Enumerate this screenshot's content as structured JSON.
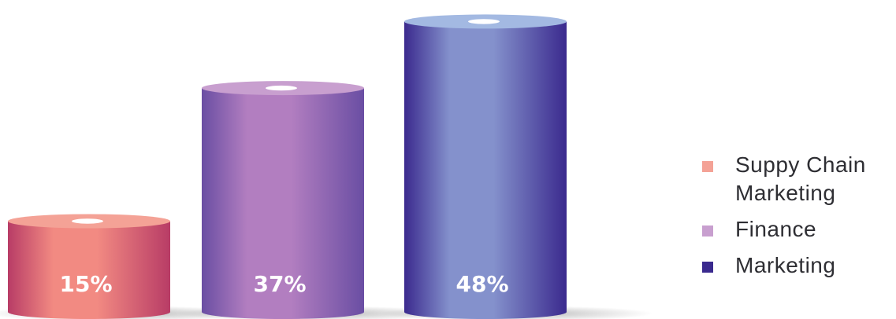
{
  "chart_data": {
    "type": "bar",
    "style": "3d-cylinder",
    "categories": [
      "Suppy Chain Marketing",
      "Finance",
      "Marketing"
    ],
    "values": [
      15,
      37,
      48
    ],
    "data_labels": [
      "15%",
      "37%",
      "48%"
    ],
    "unit": "%",
    "legend": {
      "position": "right",
      "items": [
        {
          "label": "Suppy Chain Marketing",
          "color": "#f4a296"
        },
        {
          "label": "Finance",
          "color": "#c89fcf"
        },
        {
          "label": "Marketing",
          "color": "#3a2a8e"
        }
      ]
    },
    "colors": [
      {
        "light": "#f28a82",
        "dark": "#b83c66",
        "top": "#f4a296"
      },
      {
        "light": "#b27ec0",
        "dark": "#6a4ea3",
        "top": "#c89fcf"
      },
      {
        "light": "#8491cc",
        "dark": "#3b2a8e",
        "top": "#a3b9e2"
      }
    ],
    "ylim": [
      0,
      50
    ],
    "grid": false,
    "axes_visible": false
  }
}
